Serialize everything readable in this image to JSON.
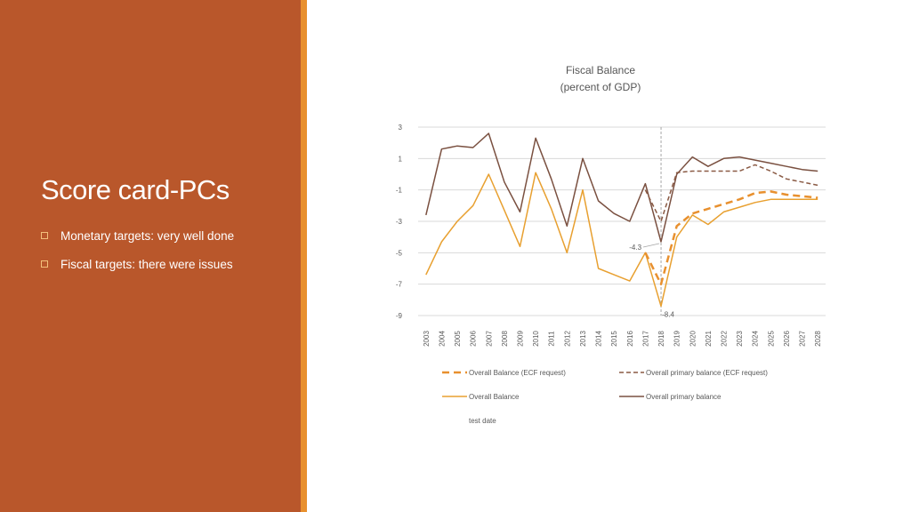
{
  "slide": {
    "title": "Score card-PCs",
    "bullets": [
      "Monetary targets: very well done",
      "Fiscal targets: there were issues"
    ]
  },
  "colors": {
    "left_panel": "#b9572b",
    "accent_bar": "#e8902e",
    "overall_balance_ecf": "#e8902e",
    "overall_primary_ecf": "#8a5a44",
    "overall_balance": "#e8a030",
    "overall_primary": "#7a5040"
  },
  "chart_data": {
    "type": "line",
    "title": "Fiscal Balance",
    "subtitle": "(percent of GDP)",
    "xlabel": "",
    "ylabel": "",
    "x": [
      "2003",
      "2004",
      "2005",
      "2006",
      "2007",
      "2008",
      "2009",
      "2010",
      "2011",
      "2012",
      "2013",
      "2014",
      "2015",
      "2016",
      "2017",
      "2018",
      "2019",
      "2020",
      "2021",
      "2022",
      "2023",
      "2024",
      "2025",
      "2026",
      "2027",
      "2028"
    ],
    "y_ticks": [
      3,
      1,
      -1,
      -3,
      -5,
      -7,
      -9
    ],
    "ylim": [
      -9,
      3
    ],
    "grid": true,
    "legend_position": "bottom",
    "vertical_marker_x": "2018",
    "annotations": [
      {
        "x": "2018",
        "y": -4.3,
        "text": "-4.3"
      },
      {
        "x": "2018",
        "y": -8.4,
        "text": "-8.4"
      }
    ],
    "series": [
      {
        "name": "Overall Balance (ECF request)",
        "style": "dashed-thick",
        "values": [
          null,
          null,
          null,
          null,
          null,
          null,
          null,
          null,
          null,
          null,
          null,
          null,
          null,
          null,
          -5.0,
          -7.0,
          -3.3,
          -2.5,
          -2.2,
          -1.9,
          -1.6,
          -1.2,
          -1.1,
          -1.3,
          -1.4,
          -1.5
        ]
      },
      {
        "name": "Overall primary balance (ECF request)",
        "style": "dashed-thin",
        "values": [
          null,
          null,
          null,
          null,
          null,
          null,
          null,
          null,
          null,
          null,
          null,
          null,
          null,
          null,
          -1.0,
          -3.0,
          0.1,
          0.2,
          0.2,
          0.2,
          0.2,
          0.6,
          0.2,
          -0.3,
          -0.5,
          -0.7
        ]
      },
      {
        "name": "Overall Balance",
        "style": "solid",
        "values": [
          -6.4,
          -4.3,
          -3.0,
          -2.0,
          0.0,
          -2.3,
          -4.6,
          0.1,
          -2.2,
          -5.0,
          -1.0,
          -6.0,
          -6.4,
          -6.8,
          -5.0,
          -8.4,
          -4.0,
          -2.6,
          -3.2,
          -2.4,
          -2.1,
          -1.8,
          -1.6,
          -1.6,
          -1.6,
          -1.6
        ]
      },
      {
        "name": "Overall primary balance",
        "style": "solid",
        "values": [
          -2.6,
          1.6,
          1.8,
          1.7,
          2.6,
          -0.5,
          -2.4,
          2.3,
          -0.3,
          -3.3,
          1.0,
          -1.7,
          -2.5,
          -3.0,
          -0.6,
          -4.3,
          0.0,
          1.1,
          0.5,
          1.0,
          1.1,
          0.9,
          0.7,
          0.5,
          0.3,
          0.2
        ]
      }
    ],
    "extra_legend_text": "test date"
  }
}
